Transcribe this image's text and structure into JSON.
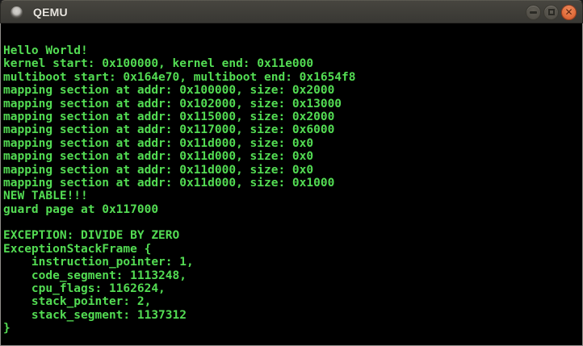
{
  "window": {
    "title": "QEMU",
    "controls": {
      "minimize_label": "minimize",
      "maximize_label": "maximize",
      "close_label": "close"
    }
  },
  "colors": {
    "titlebar_bg": "#3e3d38",
    "terminal_bg": "#000000",
    "terminal_text_green": "#53dc53",
    "close_button_orange": "#e06c3b",
    "window_border": "#908e8a"
  },
  "terminal": {
    "lines": [
      "Hello World!",
      "kernel start: 0x100000, kernel end: 0x11e000",
      "multiboot start: 0x164e70, multiboot end: 0x1654f8",
      "mapping section at addr: 0x100000, size: 0x2000",
      "mapping section at addr: 0x102000, size: 0x13000",
      "mapping section at addr: 0x115000, size: 0x2000",
      "mapping section at addr: 0x117000, size: 0x6000",
      "mapping section at addr: 0x11d000, size: 0x0",
      "mapping section at addr: 0x11d000, size: 0x0",
      "mapping section at addr: 0x11d000, size: 0x0",
      "mapping section at addr: 0x11d000, size: 0x1000",
      "NEW TABLE!!!",
      "guard page at 0x117000",
      "",
      "EXCEPTION: DIVIDE BY ZERO",
      "ExceptionStackFrame {",
      "    instruction_pointer: 1,",
      "    code_segment: 1113248,",
      "    cpu_flags: 1162624,",
      "    stack_pointer: 2,",
      "    stack_segment: 1137312",
      "}"
    ]
  }
}
